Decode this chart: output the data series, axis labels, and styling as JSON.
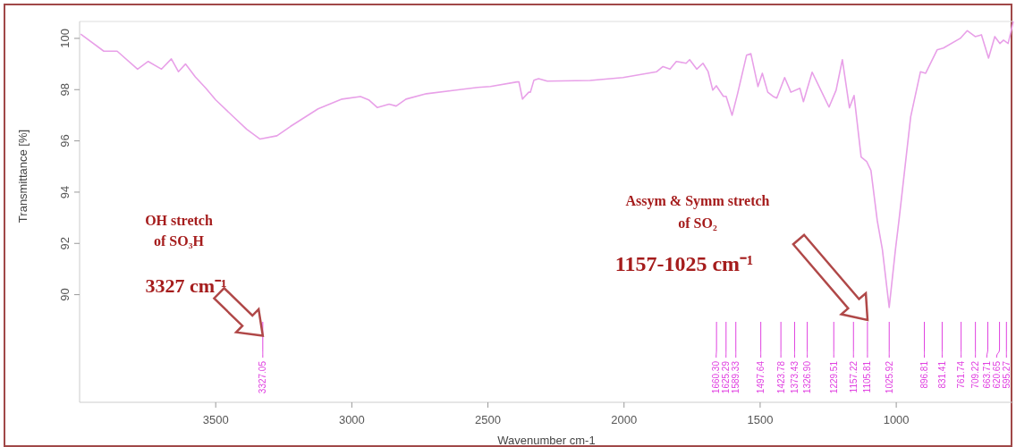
{
  "chart_data": {
    "type": "line",
    "xlabel": "Wavenumber cm-1",
    "ylabel": "Transmittance [%]",
    "xlim": [
      4000,
      570
    ],
    "ylim": [
      85.8,
      100.66
    ],
    "xticks": [
      3500,
      3000,
      2500,
      2000,
      1500,
      1000
    ],
    "yticks": [
      90,
      92,
      94,
      96,
      98,
      100
    ],
    "grid": false,
    "marker": "none",
    "line_style": "solid",
    "series": [
      {
        "color": "#e8a0e8",
        "x": [
          3996,
          3911,
          3862,
          3787,
          3748,
          3699,
          3663,
          3637,
          3611,
          3575,
          3536,
          3500,
          3438,
          3386,
          3337,
          3275,
          3226,
          3124,
          3036,
          2968,
          2938,
          2906,
          2863,
          2837,
          2801,
          2726,
          2537,
          2491,
          2393,
          2386,
          2373,
          2370,
          2350,
          2344,
          2331,
          2314,
          2282,
          2125,
          2004,
          1880,
          1857,
          1831,
          1808,
          1772,
          1759,
          1733,
          1710,
          1691,
          1674,
          1661,
          1635,
          1625,
          1603,
          1583,
          1550,
          1534,
          1508,
          1492,
          1472,
          1453,
          1439,
          1410,
          1387,
          1354,
          1341,
          1309,
          1277,
          1247,
          1221,
          1198,
          1172,
          1155,
          1129,
          1109,
          1093,
          1070,
          1051,
          1026,
          1003,
          990,
          947,
          911,
          892,
          850,
          827,
          765,
          739,
          710,
          687,
          661,
          638,
          619,
          606,
          589,
          570
        ],
        "values": [
          100.17,
          99.5,
          99.5,
          98.8,
          99.1,
          98.8,
          99.2,
          98.7,
          99.0,
          98.5,
          98.05,
          97.6,
          96.97,
          96.45,
          96.07,
          96.2,
          96.56,
          97.25,
          97.63,
          97.73,
          97.6,
          97.3,
          97.43,
          97.36,
          97.63,
          97.84,
          98.09,
          98.12,
          98.3,
          98.3,
          97.63,
          97.67,
          97.9,
          97.9,
          98.37,
          98.43,
          98.33,
          98.36,
          98.47,
          98.7,
          98.9,
          98.8,
          99.1,
          99.03,
          99.17,
          98.8,
          99.03,
          98.7,
          97.98,
          98.15,
          97.74,
          97.74,
          97.0,
          97.84,
          99.34,
          99.4,
          98.12,
          98.64,
          97.9,
          97.74,
          97.67,
          98.47,
          97.9,
          98.05,
          97.53,
          98.68,
          97.98,
          97.32,
          97.98,
          99.17,
          97.29,
          97.77,
          95.37,
          95.2,
          94.85,
          92.9,
          91.76,
          89.5,
          91.76,
          92.9,
          96.94,
          98.7,
          98.64,
          99.55,
          99.62,
          100.0,
          100.3,
          100.07,
          100.14,
          99.23,
          100.07,
          99.8,
          99.93,
          99.8,
          100.66
        ]
      }
    ],
    "annotations": [
      "OH stretch",
      "of SO₃H",
      {
        "text": "3327 cm⁻¹",
        "x": 3327,
        "y": 88.4
      },
      "Assym & Symm stretch",
      "of SO₂",
      "1157-1025 cm⁻¹"
    ],
    "ref_lines": [
      {
        "axis": "x",
        "value": 3327.05,
        "label": "3327.05",
        "color": "#e040e0"
      },
      {
        "axis": "x",
        "value": 1660.3,
        "label": "1660.30",
        "color": "#e040e0"
      },
      {
        "axis": "x",
        "value": 1625.29,
        "label": "1625.29",
        "color": "#e040e0"
      },
      {
        "axis": "x",
        "value": 1589.33,
        "label": "1589.33",
        "color": "#e040e0"
      },
      {
        "axis": "x",
        "value": 1497.64,
        "label": "1497.64",
        "color": "#e040e0"
      },
      {
        "axis": "x",
        "value": 1423.78,
        "label": "1423.78",
        "color": "#e040e0"
      },
      {
        "axis": "x",
        "value": 1373.43,
        "label": "1373.43",
        "color": "#e040e0"
      },
      {
        "axis": "x",
        "value": 1326.9,
        "label": "1326.90",
        "color": "#e040e0"
      },
      {
        "axis": "x",
        "value": 1229.51,
        "label": "1229.51",
        "color": "#e040e0"
      },
      {
        "axis": "x",
        "value": 1157.22,
        "label": "1157.22",
        "color": "#e040e0"
      },
      {
        "axis": "x",
        "value": 1105.81,
        "label": "1105.81",
        "color": "#e040e0"
      },
      {
        "axis": "x",
        "value": 1025.92,
        "label": "1025.92",
        "color": "#e040e0"
      },
      {
        "axis": "x",
        "value": 896.81,
        "label": "896.81",
        "color": "#e040e0"
      },
      {
        "axis": "x",
        "value": 831.41,
        "label": "831.41",
        "color": "#e040e0"
      },
      {
        "axis": "x",
        "value": 761.74,
        "label": "761.74",
        "color": "#e040e0"
      },
      {
        "axis": "x",
        "value": 709.22,
        "label": "709.22",
        "color": "#e040e0"
      },
      {
        "axis": "x",
        "value": 663.71,
        "label": "663.71",
        "color": "#e040e0"
      },
      {
        "axis": "x",
        "value": 620.65,
        "label": "620.65",
        "color": "#e040e0"
      },
      {
        "axis": "x",
        "value": 595.27,
        "label": "595.27",
        "color": "#e040e0"
      }
    ]
  }
}
